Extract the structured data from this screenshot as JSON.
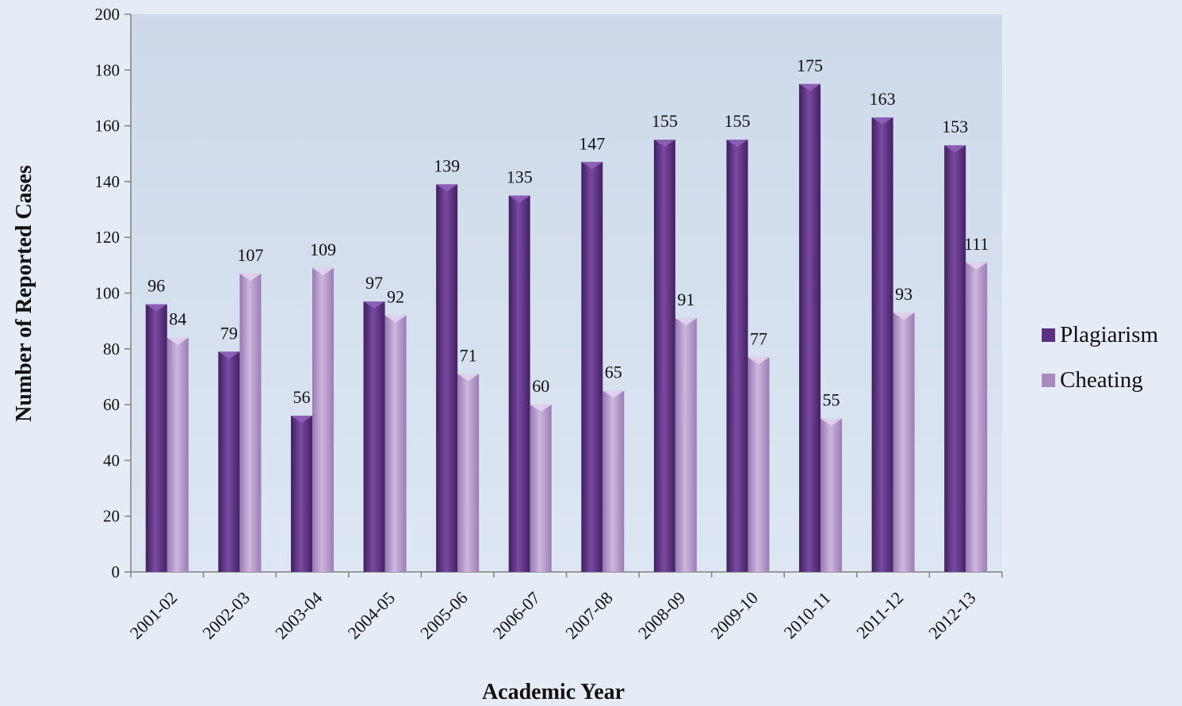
{
  "chart_data": {
    "type": "bar",
    "categories": [
      "2001-02",
      "2002-03",
      "2003-04",
      "2004-05",
      "2005-06",
      "2006-07",
      "2007-08",
      "2008-09",
      "2009-10",
      "2010-11",
      "2011-12",
      "2012-13"
    ],
    "series": [
      {
        "name": "Plagiarism",
        "values": [
          96,
          79,
          56,
          97,
          139,
          135,
          147,
          155,
          155,
          175,
          163,
          153
        ],
        "color": "#6b3f8f"
      },
      {
        "name": "Cheating",
        "values": [
          84,
          107,
          109,
          92,
          71,
          60,
          65,
          91,
          77,
          55,
          93,
          111
        ],
        "color": "#b89fcc"
      }
    ],
    "xlabel": "Academic Year",
    "ylabel": "Number of Reported Cases",
    "ylim": [
      0,
      200
    ],
    "yticks": [
      0,
      20,
      40,
      60,
      80,
      100,
      120,
      140,
      160,
      180,
      200
    ],
    "legend_position": "right",
    "grid": false,
    "plot_background": "#cfdcec"
  }
}
